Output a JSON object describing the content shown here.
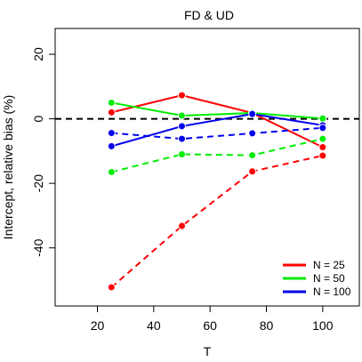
{
  "chart_data": {
    "type": "line",
    "title": "FD  &  UD",
    "xlabel": "T",
    "ylabel": "Intercept, relative bias (%)",
    "xlim": [
      5,
      113
    ],
    "ylim": [
      -58,
      28
    ],
    "x_ticks": [
      20,
      40,
      60,
      80,
      100
    ],
    "y_ticks": [
      -40,
      -20,
      0,
      20
    ],
    "x": [
      25,
      50,
      75,
      100
    ],
    "reference_line": {
      "y": 0,
      "style": "dashed",
      "color": "#000000"
    },
    "legend": {
      "position": "bottom-right"
    },
    "series": [
      {
        "name": "N = 25",
        "line": "solid",
        "color": "#ff0000",
        "values": [
          2.0,
          7.3,
          1.8,
          -8.8
        ]
      },
      {
        "name": "N = 50",
        "line": "solid",
        "color": "#00ee00",
        "values": [
          5.0,
          1.0,
          1.8,
          0.1
        ]
      },
      {
        "name": "N = 100",
        "line": "solid",
        "color": "#0000ee",
        "values": [
          -8.5,
          -2.3,
          1.5,
          -2.0
        ]
      },
      {
        "name": "",
        "line": "dashed",
        "color": "#ff0000",
        "values": [
          -52.2,
          -33.2,
          -16.3,
          -11.4
        ]
      },
      {
        "name": "",
        "line": "dashed",
        "color": "#00ee00",
        "values": [
          -16.5,
          -11.0,
          -11.3,
          -6.2
        ]
      },
      {
        "name": "",
        "line": "dashed",
        "color": "#0000ee",
        "values": [
          -4.4,
          -6.2,
          -4.5,
          -2.8
        ]
      }
    ]
  }
}
